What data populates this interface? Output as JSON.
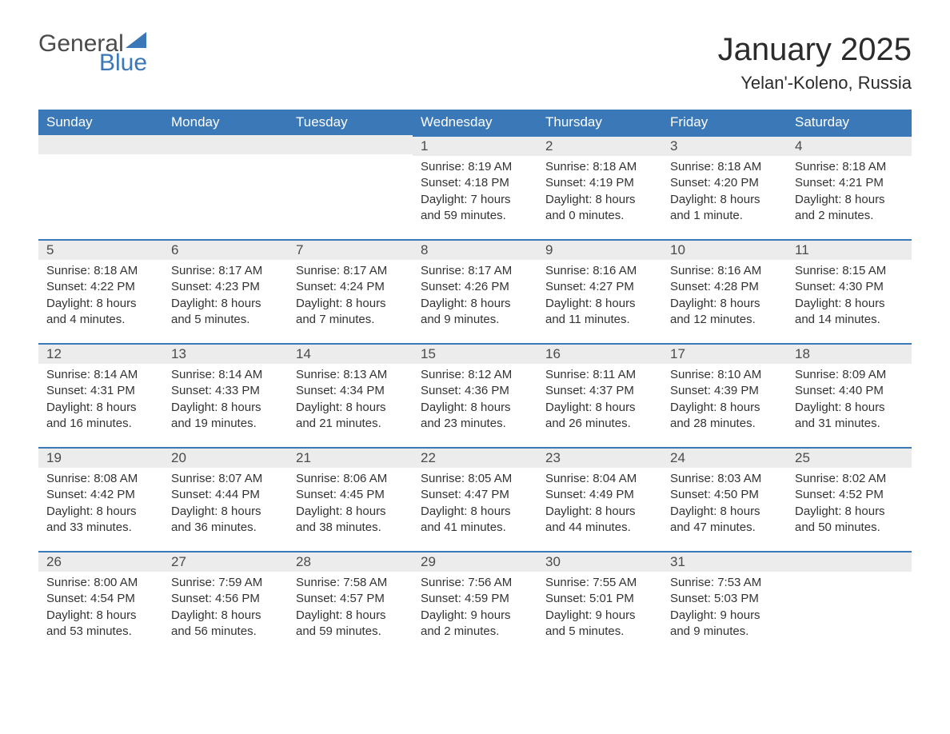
{
  "logo": {
    "general": "General",
    "blue": "Blue",
    "flag_color": "#3a78b8"
  },
  "title": "January 2025",
  "location": "Yelan'-Koleno, Russia",
  "colors": {
    "header_bg": "#3a78b8",
    "header_text": "#ffffff",
    "daynum_bg": "#ececec",
    "daynum_border": "#3a78b8",
    "body_text": "#333333",
    "page_bg": "#ffffff"
  },
  "weekdays": [
    "Sunday",
    "Monday",
    "Tuesday",
    "Wednesday",
    "Thursday",
    "Friday",
    "Saturday"
  ],
  "weeks": [
    [
      null,
      null,
      null,
      {
        "n": "1",
        "sunrise": "Sunrise: 8:19 AM",
        "sunset": "Sunset: 4:18 PM",
        "day1": "Daylight: 7 hours",
        "day2": "and 59 minutes."
      },
      {
        "n": "2",
        "sunrise": "Sunrise: 8:18 AM",
        "sunset": "Sunset: 4:19 PM",
        "day1": "Daylight: 8 hours",
        "day2": "and 0 minutes."
      },
      {
        "n": "3",
        "sunrise": "Sunrise: 8:18 AM",
        "sunset": "Sunset: 4:20 PM",
        "day1": "Daylight: 8 hours",
        "day2": "and 1 minute."
      },
      {
        "n": "4",
        "sunrise": "Sunrise: 8:18 AM",
        "sunset": "Sunset: 4:21 PM",
        "day1": "Daylight: 8 hours",
        "day2": "and 2 minutes."
      }
    ],
    [
      {
        "n": "5",
        "sunrise": "Sunrise: 8:18 AM",
        "sunset": "Sunset: 4:22 PM",
        "day1": "Daylight: 8 hours",
        "day2": "and 4 minutes."
      },
      {
        "n": "6",
        "sunrise": "Sunrise: 8:17 AM",
        "sunset": "Sunset: 4:23 PM",
        "day1": "Daylight: 8 hours",
        "day2": "and 5 minutes."
      },
      {
        "n": "7",
        "sunrise": "Sunrise: 8:17 AM",
        "sunset": "Sunset: 4:24 PM",
        "day1": "Daylight: 8 hours",
        "day2": "and 7 minutes."
      },
      {
        "n": "8",
        "sunrise": "Sunrise: 8:17 AM",
        "sunset": "Sunset: 4:26 PM",
        "day1": "Daylight: 8 hours",
        "day2": "and 9 minutes."
      },
      {
        "n": "9",
        "sunrise": "Sunrise: 8:16 AM",
        "sunset": "Sunset: 4:27 PM",
        "day1": "Daylight: 8 hours",
        "day2": "and 11 minutes."
      },
      {
        "n": "10",
        "sunrise": "Sunrise: 8:16 AM",
        "sunset": "Sunset: 4:28 PM",
        "day1": "Daylight: 8 hours",
        "day2": "and 12 minutes."
      },
      {
        "n": "11",
        "sunrise": "Sunrise: 8:15 AM",
        "sunset": "Sunset: 4:30 PM",
        "day1": "Daylight: 8 hours",
        "day2": "and 14 minutes."
      }
    ],
    [
      {
        "n": "12",
        "sunrise": "Sunrise: 8:14 AM",
        "sunset": "Sunset: 4:31 PM",
        "day1": "Daylight: 8 hours",
        "day2": "and 16 minutes."
      },
      {
        "n": "13",
        "sunrise": "Sunrise: 8:14 AM",
        "sunset": "Sunset: 4:33 PM",
        "day1": "Daylight: 8 hours",
        "day2": "and 19 minutes."
      },
      {
        "n": "14",
        "sunrise": "Sunrise: 8:13 AM",
        "sunset": "Sunset: 4:34 PM",
        "day1": "Daylight: 8 hours",
        "day2": "and 21 minutes."
      },
      {
        "n": "15",
        "sunrise": "Sunrise: 8:12 AM",
        "sunset": "Sunset: 4:36 PM",
        "day1": "Daylight: 8 hours",
        "day2": "and 23 minutes."
      },
      {
        "n": "16",
        "sunrise": "Sunrise: 8:11 AM",
        "sunset": "Sunset: 4:37 PM",
        "day1": "Daylight: 8 hours",
        "day2": "and 26 minutes."
      },
      {
        "n": "17",
        "sunrise": "Sunrise: 8:10 AM",
        "sunset": "Sunset: 4:39 PM",
        "day1": "Daylight: 8 hours",
        "day2": "and 28 minutes."
      },
      {
        "n": "18",
        "sunrise": "Sunrise: 8:09 AM",
        "sunset": "Sunset: 4:40 PM",
        "day1": "Daylight: 8 hours",
        "day2": "and 31 minutes."
      }
    ],
    [
      {
        "n": "19",
        "sunrise": "Sunrise: 8:08 AM",
        "sunset": "Sunset: 4:42 PM",
        "day1": "Daylight: 8 hours",
        "day2": "and 33 minutes."
      },
      {
        "n": "20",
        "sunrise": "Sunrise: 8:07 AM",
        "sunset": "Sunset: 4:44 PM",
        "day1": "Daylight: 8 hours",
        "day2": "and 36 minutes."
      },
      {
        "n": "21",
        "sunrise": "Sunrise: 8:06 AM",
        "sunset": "Sunset: 4:45 PM",
        "day1": "Daylight: 8 hours",
        "day2": "and 38 minutes."
      },
      {
        "n": "22",
        "sunrise": "Sunrise: 8:05 AM",
        "sunset": "Sunset: 4:47 PM",
        "day1": "Daylight: 8 hours",
        "day2": "and 41 minutes."
      },
      {
        "n": "23",
        "sunrise": "Sunrise: 8:04 AM",
        "sunset": "Sunset: 4:49 PM",
        "day1": "Daylight: 8 hours",
        "day2": "and 44 minutes."
      },
      {
        "n": "24",
        "sunrise": "Sunrise: 8:03 AM",
        "sunset": "Sunset: 4:50 PM",
        "day1": "Daylight: 8 hours",
        "day2": "and 47 minutes."
      },
      {
        "n": "25",
        "sunrise": "Sunrise: 8:02 AM",
        "sunset": "Sunset: 4:52 PM",
        "day1": "Daylight: 8 hours",
        "day2": "and 50 minutes."
      }
    ],
    [
      {
        "n": "26",
        "sunrise": "Sunrise: 8:00 AM",
        "sunset": "Sunset: 4:54 PM",
        "day1": "Daylight: 8 hours",
        "day2": "and 53 minutes."
      },
      {
        "n": "27",
        "sunrise": "Sunrise: 7:59 AM",
        "sunset": "Sunset: 4:56 PM",
        "day1": "Daylight: 8 hours",
        "day2": "and 56 minutes."
      },
      {
        "n": "28",
        "sunrise": "Sunrise: 7:58 AM",
        "sunset": "Sunset: 4:57 PM",
        "day1": "Daylight: 8 hours",
        "day2": "and 59 minutes."
      },
      {
        "n": "29",
        "sunrise": "Sunrise: 7:56 AM",
        "sunset": "Sunset: 4:59 PM",
        "day1": "Daylight: 9 hours",
        "day2": "and 2 minutes."
      },
      {
        "n": "30",
        "sunrise": "Sunrise: 7:55 AM",
        "sunset": "Sunset: 5:01 PM",
        "day1": "Daylight: 9 hours",
        "day2": "and 5 minutes."
      },
      {
        "n": "31",
        "sunrise": "Sunrise: 7:53 AM",
        "sunset": "Sunset: 5:03 PM",
        "day1": "Daylight: 9 hours",
        "day2": "and 9 minutes."
      },
      null
    ]
  ]
}
